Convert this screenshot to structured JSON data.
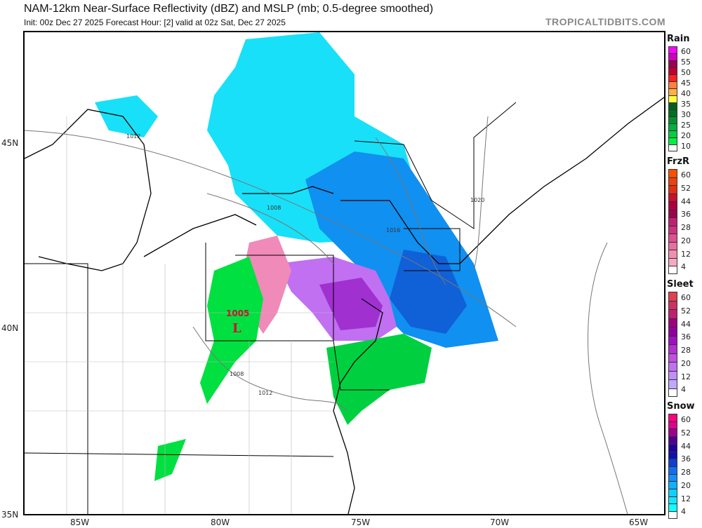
{
  "header": {
    "title": "NAM-12km Near-Surface Reflectivity (dBZ) and MSLP (mb; 0.5-degree smoothed)",
    "subtitle": "Init: 00z Dec 27 2025   Forecast Hour: [2]   valid at 02z Sat, Dec 27 2025",
    "brand": "TROPICALTIDBITS.COM"
  },
  "axes": {
    "lat_labels": [
      "45N",
      "40N",
      "35N"
    ],
    "lon_labels": [
      "85W",
      "80W",
      "75W",
      "70W",
      "65W"
    ]
  },
  "map": {
    "low_center": {
      "pressure": "1005",
      "symbol": "L",
      "color": "#cc1133"
    },
    "isobar_labels": [
      "1012",
      "1008",
      "1016",
      "1020",
      "1008",
      "1012"
    ]
  },
  "legends": [
    {
      "name": "Rain",
      "labels": [
        "60",
        "55",
        "50",
        "45",
        "40",
        "35",
        "30",
        "25",
        "20",
        "10"
      ],
      "colors": [
        "#ff00ff",
        "#d000c0",
        "#a00050",
        "#c00030",
        "#ff2020",
        "#ff8040",
        "#ffb040",
        "#ffff40",
        "#006020",
        "#007020",
        "#009030",
        "#00b040",
        "#00d040",
        "#00f040",
        "#ffffff"
      ]
    },
    {
      "name": "FrzR",
      "labels": [
        "60",
        "52",
        "44",
        "36",
        "28",
        "20",
        "12",
        "4"
      ],
      "colors": [
        "#ff5000",
        "#f04010",
        "#e03010",
        "#c81030",
        "#b00040",
        "#a00050",
        "#c02070",
        "#d03080",
        "#e05090",
        "#e870a0",
        "#f090b0",
        "#f8a8c0",
        "#ffffff"
      ]
    },
    {
      "name": "Sleet",
      "labels": [
        "60",
        "52",
        "44",
        "36",
        "28",
        "20",
        "12",
        "4"
      ],
      "colors": [
        "#e04050",
        "#d03060",
        "#c02070",
        "#a00080",
        "#9000a0",
        "#a010c0",
        "#b030d0",
        "#c050e0",
        "#c070f0",
        "#c090f8",
        "#c0a8ff",
        "#ffffff"
      ]
    },
    {
      "name": "Snow",
      "labels": [
        "60",
        "52",
        "44",
        "36",
        "28",
        "20",
        "12",
        "4"
      ],
      "colors": [
        "#ff0080",
        "#e00090",
        "#a00090",
        "#500090",
        "#2000a0",
        "#1010b0",
        "#1040d0",
        "#1070f0",
        "#1090ff",
        "#10b0ff",
        "#10d0ff",
        "#10e8ff",
        "#10ffff",
        "#ffffff"
      ]
    }
  ]
}
